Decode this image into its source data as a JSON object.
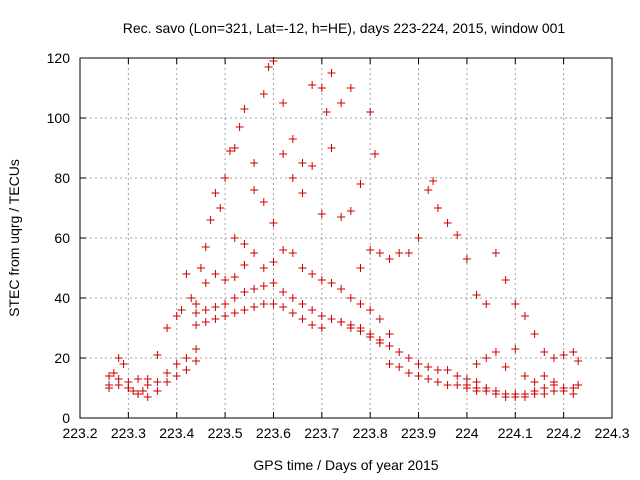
{
  "chart_data": {
    "type": "scatter",
    "title": "Rec. savo (Lon=321, Lat=-12, h=HE), days 223-224, 2015, window 001",
    "xlabel": "GPS time / Days of year 2015",
    "ylabel": "STEC from uqrg / TECUs",
    "xlim": [
      223.2,
      224.3
    ],
    "ylim": [
      0,
      120
    ],
    "xticks": [
      "223.2",
      "223.3",
      "223.4",
      "223.5",
      "223.6",
      "223.7",
      "223.8",
      "223.9",
      "224",
      "224.1",
      "224.2",
      "224.3"
    ],
    "yticks": [
      "0",
      "20",
      "40",
      "60",
      "80",
      "100",
      "120"
    ],
    "grid": true,
    "marker": "+",
    "color": "#cc0000",
    "points": [
      [
        223.26,
        11
      ],
      [
        223.27,
        15
      ],
      [
        223.28,
        20
      ],
      [
        223.29,
        18
      ],
      [
        223.3,
        10
      ],
      [
        223.31,
        9
      ],
      [
        223.32,
        8
      ],
      [
        223.33,
        9
      ],
      [
        223.34,
        11
      ],
      [
        223.36,
        21
      ],
      [
        223.26,
        14
      ],
      [
        223.28,
        13
      ],
      [
        223.3,
        12
      ],
      [
        223.32,
        13
      ],
      [
        223.34,
        13
      ],
      [
        223.36,
        12
      ],
      [
        223.38,
        15
      ],
      [
        223.4,
        18
      ],
      [
        223.42,
        20
      ],
      [
        223.44,
        23
      ],
      [
        223.26,
        10
      ],
      [
        223.28,
        11
      ],
      [
        223.3,
        10
      ],
      [
        223.32,
        8
      ],
      [
        223.34,
        7
      ],
      [
        223.36,
        9
      ],
      [
        223.38,
        12
      ],
      [
        223.4,
        14
      ],
      [
        223.42,
        16
      ],
      [
        223.44,
        19
      ],
      [
        223.38,
        30
      ],
      [
        223.4,
        34
      ],
      [
        223.41,
        36
      ],
      [
        223.42,
        48
      ],
      [
        223.43,
        40
      ],
      [
        223.44,
        38
      ],
      [
        223.45,
        50
      ],
      [
        223.46,
        57
      ],
      [
        223.47,
        66
      ],
      [
        223.48,
        75
      ],
      [
        223.49,
        70
      ],
      [
        223.5,
        80
      ],
      [
        223.51,
        89
      ],
      [
        223.52,
        90
      ],
      [
        223.53,
        97
      ],
      [
        223.54,
        103
      ],
      [
        223.56,
        85
      ],
      [
        223.58,
        108
      ],
      [
        223.59,
        117
      ],
      [
        223.6,
        119
      ],
      [
        223.62,
        105
      ],
      [
        223.64,
        93
      ],
      [
        223.66,
        85
      ],
      [
        223.68,
        111
      ],
      [
        223.7,
        110
      ],
      [
        223.71,
        102
      ],
      [
        223.72,
        115
      ],
      [
        223.74,
        105
      ],
      [
        223.76,
        110
      ],
      [
        223.78,
        78
      ],
      [
        223.8,
        102
      ],
      [
        223.81,
        88
      ],
      [
        223.52,
        60
      ],
      [
        223.54,
        58
      ],
      [
        223.56,
        76
      ],
      [
        223.58,
        72
      ],
      [
        223.6,
        65
      ],
      [
        223.62,
        88
      ],
      [
        223.64,
        80
      ],
      [
        223.66,
        75
      ],
      [
        223.68,
        84
      ],
      [
        223.7,
        68
      ],
      [
        223.72,
        90
      ],
      [
        223.74,
        67
      ],
      [
        223.76,
        69
      ],
      [
        223.78,
        50
      ],
      [
        223.8,
        56
      ],
      [
        223.82,
        55
      ],
      [
        223.84,
        53
      ],
      [
        223.86,
        55
      ],
      [
        223.46,
        45
      ],
      [
        223.48,
        48
      ],
      [
        223.5,
        46
      ],
      [
        223.52,
        47
      ],
      [
        223.54,
        51
      ],
      [
        223.56,
        55
      ],
      [
        223.58,
        50
      ],
      [
        223.6,
        52
      ],
      [
        223.62,
        56
      ],
      [
        223.64,
        55
      ],
      [
        223.66,
        50
      ],
      [
        223.68,
        48
      ],
      [
        223.7,
        46
      ],
      [
        223.72,
        45
      ],
      [
        223.74,
        43
      ],
      [
        223.76,
        40
      ],
      [
        223.78,
        38
      ],
      [
        223.8,
        36
      ],
      [
        223.82,
        33
      ],
      [
        223.84,
        28
      ],
      [
        223.44,
        35
      ],
      [
        223.46,
        36
      ],
      [
        223.48,
        37
      ],
      [
        223.5,
        38
      ],
      [
        223.52,
        40
      ],
      [
        223.54,
        42
      ],
      [
        223.56,
        43
      ],
      [
        223.58,
        44
      ],
      [
        223.6,
        45
      ],
      [
        223.62,
        42
      ],
      [
        223.64,
        40
      ],
      [
        223.66,
        38
      ],
      [
        223.68,
        36
      ],
      [
        223.7,
        34
      ],
      [
        223.72,
        33
      ],
      [
        223.74,
        32
      ],
      [
        223.76,
        30
      ],
      [
        223.78,
        29
      ],
      [
        223.8,
        27
      ],
      [
        223.82,
        25
      ],
      [
        223.44,
        31
      ],
      [
        223.46,
        32
      ],
      [
        223.48,
        33
      ],
      [
        223.5,
        34
      ],
      [
        223.52,
        35
      ],
      [
        223.54,
        36
      ],
      [
        223.56,
        37
      ],
      [
        223.58,
        38
      ],
      [
        223.6,
        38
      ],
      [
        223.62,
        37
      ],
      [
        223.64,
        35
      ],
      [
        223.66,
        33
      ],
      [
        223.68,
        31
      ],
      [
        223.7,
        30
      ],
      [
        223.72,
        33
      ],
      [
        223.74,
        32
      ],
      [
        223.76,
        31
      ],
      [
        223.78,
        30
      ],
      [
        223.8,
        28
      ],
      [
        223.82,
        26
      ],
      [
        223.84,
        24
      ],
      [
        223.86,
        22
      ],
      [
        223.88,
        20
      ],
      [
        223.9,
        18
      ],
      [
        223.92,
        17
      ],
      [
        223.94,
        16
      ],
      [
        223.96,
        16
      ],
      [
        223.98,
        14
      ],
      [
        224.0,
        13
      ],
      [
        224.02,
        12
      ],
      [
        223.84,
        18
      ],
      [
        223.86,
        17
      ],
      [
        223.88,
        15
      ],
      [
        223.9,
        14
      ],
      [
        223.92,
        13
      ],
      [
        223.94,
        12
      ],
      [
        223.96,
        11
      ],
      [
        223.98,
        11
      ],
      [
        224.0,
        10
      ],
      [
        224.02,
        9
      ],
      [
        223.88,
        55
      ],
      [
        223.9,
        60
      ],
      [
        223.92,
        76
      ],
      [
        223.93,
        79
      ],
      [
        223.94,
        70
      ],
      [
        223.96,
        65
      ],
      [
        223.98,
        61
      ],
      [
        224.0,
        53
      ],
      [
        224.02,
        41
      ],
      [
        224.04,
        38
      ],
      [
        224.06,
        55
      ],
      [
        224.08,
        46
      ],
      [
        224.1,
        38
      ],
      [
        224.12,
        34
      ],
      [
        224.14,
        28
      ],
      [
        224.16,
        22
      ],
      [
        224.18,
        20
      ],
      [
        224.2,
        21
      ],
      [
        224.22,
        22
      ],
      [
        224.23,
        19
      ],
      [
        224.02,
        18
      ],
      [
        224.04,
        20
      ],
      [
        224.06,
        22
      ],
      [
        224.08,
        17
      ],
      [
        224.1,
        23
      ],
      [
        224.12,
        14
      ],
      [
        224.14,
        12
      ],
      [
        224.16,
        14
      ],
      [
        224.18,
        12
      ],
      [
        224.2,
        10
      ],
      [
        224.04,
        10
      ],
      [
        224.06,
        9
      ],
      [
        224.08,
        8
      ],
      [
        224.1,
        8
      ],
      [
        224.12,
        7
      ],
      [
        224.14,
        8
      ],
      [
        224.16,
        8
      ],
      [
        224.18,
        9
      ],
      [
        224.2,
        9
      ],
      [
        224.22,
        10
      ],
      [
        224.23,
        11
      ],
      [
        224.0,
        11
      ],
      [
        224.02,
        10
      ],
      [
        224.04,
        9
      ],
      [
        224.06,
        8
      ],
      [
        224.08,
        7
      ],
      [
        224.1,
        7
      ],
      [
        224.12,
        8
      ],
      [
        224.14,
        9
      ],
      [
        224.16,
        10
      ],
      [
        224.18,
        11
      ],
      [
        224.22,
        8
      ]
    ]
  }
}
